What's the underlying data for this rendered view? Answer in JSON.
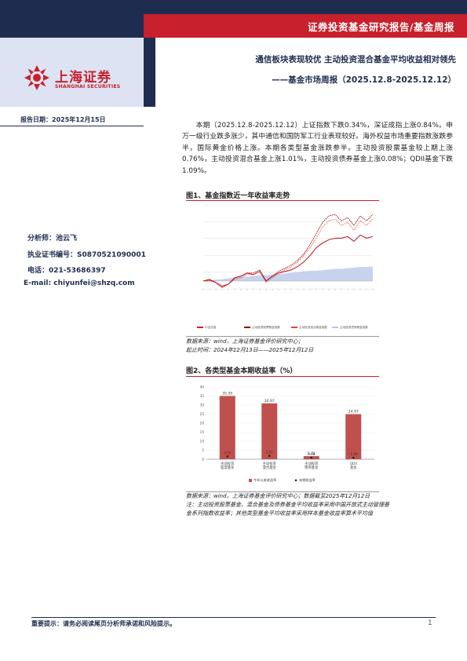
{
  "header": {
    "banner": "证券投资基金研究报告/基金周报",
    "title_line1": "通信板块表现较优 主动投资混合基金平均收益相对领先",
    "title_line2": "——基金市场周报（2025.12.8-2025.12.12）"
  },
  "logo": {
    "cn": "上海证券",
    "en": "SHANGHAI SECURITIES"
  },
  "report_date": "报告日期：2025年12月15日",
  "analyst": {
    "name": "分析师：池云飞",
    "license": "执业证书编号：S0870521090001",
    "phone": "电话：021-53686397",
    "email": "E-mail: chiyunfei@shzq.com"
  },
  "summary": "本期（2025.12.8-2025.12.12）上证指数下跌0.34%，深证成指上涨0.84%。申万一级行业跌多涨少，其中通信和国防军工行业表现较好。海外权益市场重要指数涨跌参半，国际黄金价格上涨。本期各类型基金涨跌参半。主动投资股票基金较上期上涨0.76%，主动投资混合基金上涨1.01%，主动投资债券基金上涨0.08%；QDII基金下跌1.09%。",
  "figure1": {
    "title": "图1、基金指数近一年收益率走势",
    "source1": "数据来源：wind，上海证券基金评价研究中心；",
    "source2": "起止时间：2024年12月13日——2025年12月12日"
  },
  "figure2": {
    "title": "图2、各类型基金本期收益率（%）",
    "source1": "数据来源：wind，上海证券基金评价研究中心；数据截至2025年12月12日",
    "note1": "注：主动投资股票基金、混合基金及债券基金平均收益率采用中国开放式主动管理基",
    "note2": "金系列指数收益率；其他类型基金平均收益率采用样本基金收益率算术平均值"
  },
  "chart_data": [
    {
      "type": "line",
      "title": "",
      "legend": [
        "中证全指",
        "主动投资股票基金指数",
        "主动投资混合基金指数",
        "主动投资债券基金指数"
      ],
      "ylim": [
        -0.05,
        0.48
      ],
      "series": [
        {
          "name": "中证全指",
          "values": [
            0.0,
            0.01,
            -0.01,
            -0.04,
            -0.02,
            0.02,
            0.03,
            0.05,
            0.04,
            0.06,
            0.0,
            0.03,
            0.05,
            0.06,
            0.07,
            0.09,
            0.12,
            0.16,
            0.21,
            0.24,
            0.26,
            0.27,
            0.27,
            0.28,
            0.25,
            0.29,
            0.27,
            0.28
          ]
        },
        {
          "name": "主动投资股票基金指数",
          "values": [
            0.0,
            0.005,
            -0.01,
            -0.03,
            -0.02,
            0.02,
            0.03,
            0.05,
            0.05,
            0.07,
            0.0,
            0.03,
            0.06,
            0.08,
            0.1,
            0.13,
            0.17,
            0.23,
            0.3,
            0.37,
            0.41,
            0.42,
            0.38,
            0.4,
            0.35,
            0.41,
            0.38,
            0.42
          ]
        },
        {
          "name": "主动投资混合基金指数",
          "values": [
            0.0,
            0.0,
            -0.01,
            -0.03,
            -0.02,
            0.01,
            0.02,
            0.04,
            0.04,
            0.06,
            -0.01,
            0.02,
            0.05,
            0.07,
            0.09,
            0.12,
            0.16,
            0.21,
            0.27,
            0.34,
            0.38,
            0.39,
            0.35,
            0.37,
            0.32,
            0.38,
            0.35,
            0.39
          ]
        },
        {
          "name": "主动投资债券基金指数",
          "values": [
            0.0,
            0.001,
            0.002,
            0.003,
            0.004,
            0.005,
            0.006,
            0.007,
            0.008,
            0.009,
            0.009,
            0.01,
            0.011,
            0.012,
            0.013,
            0.014,
            0.015,
            0.016,
            0.016,
            0.017,
            0.018,
            0.019,
            0.019,
            0.02,
            0.021,
            0.022,
            0.022,
            0.023
          ]
        }
      ]
    },
    {
      "type": "bar",
      "title": "",
      "categories": [
        "主动投资股票基金",
        "主动投资混合基金",
        "主动投资债券基金",
        "QDII基金"
      ],
      "ylim": [
        0,
        40
      ],
      "series": [
        {
          "name": "今年以来收益率",
          "values": [
            35.05,
            30.97,
            1.71,
            24.97
          ]
        },
        {
          "name": "本期收益率",
          "values": [
            0.76,
            1.01,
            0.08,
            -1.09
          ]
        }
      ],
      "bar_labels": [
        "35.05",
        "30.97",
        "1.71",
        "24.97"
      ],
      "point_labels": [
        "0.76",
        "1.01",
        "0.08",
        "-1.09"
      ]
    }
  ],
  "colors": {
    "navy": "#1e2d4f",
    "red": "#c8202c",
    "bar": "#c0504d",
    "area": "#b7c8e8"
  }
}
